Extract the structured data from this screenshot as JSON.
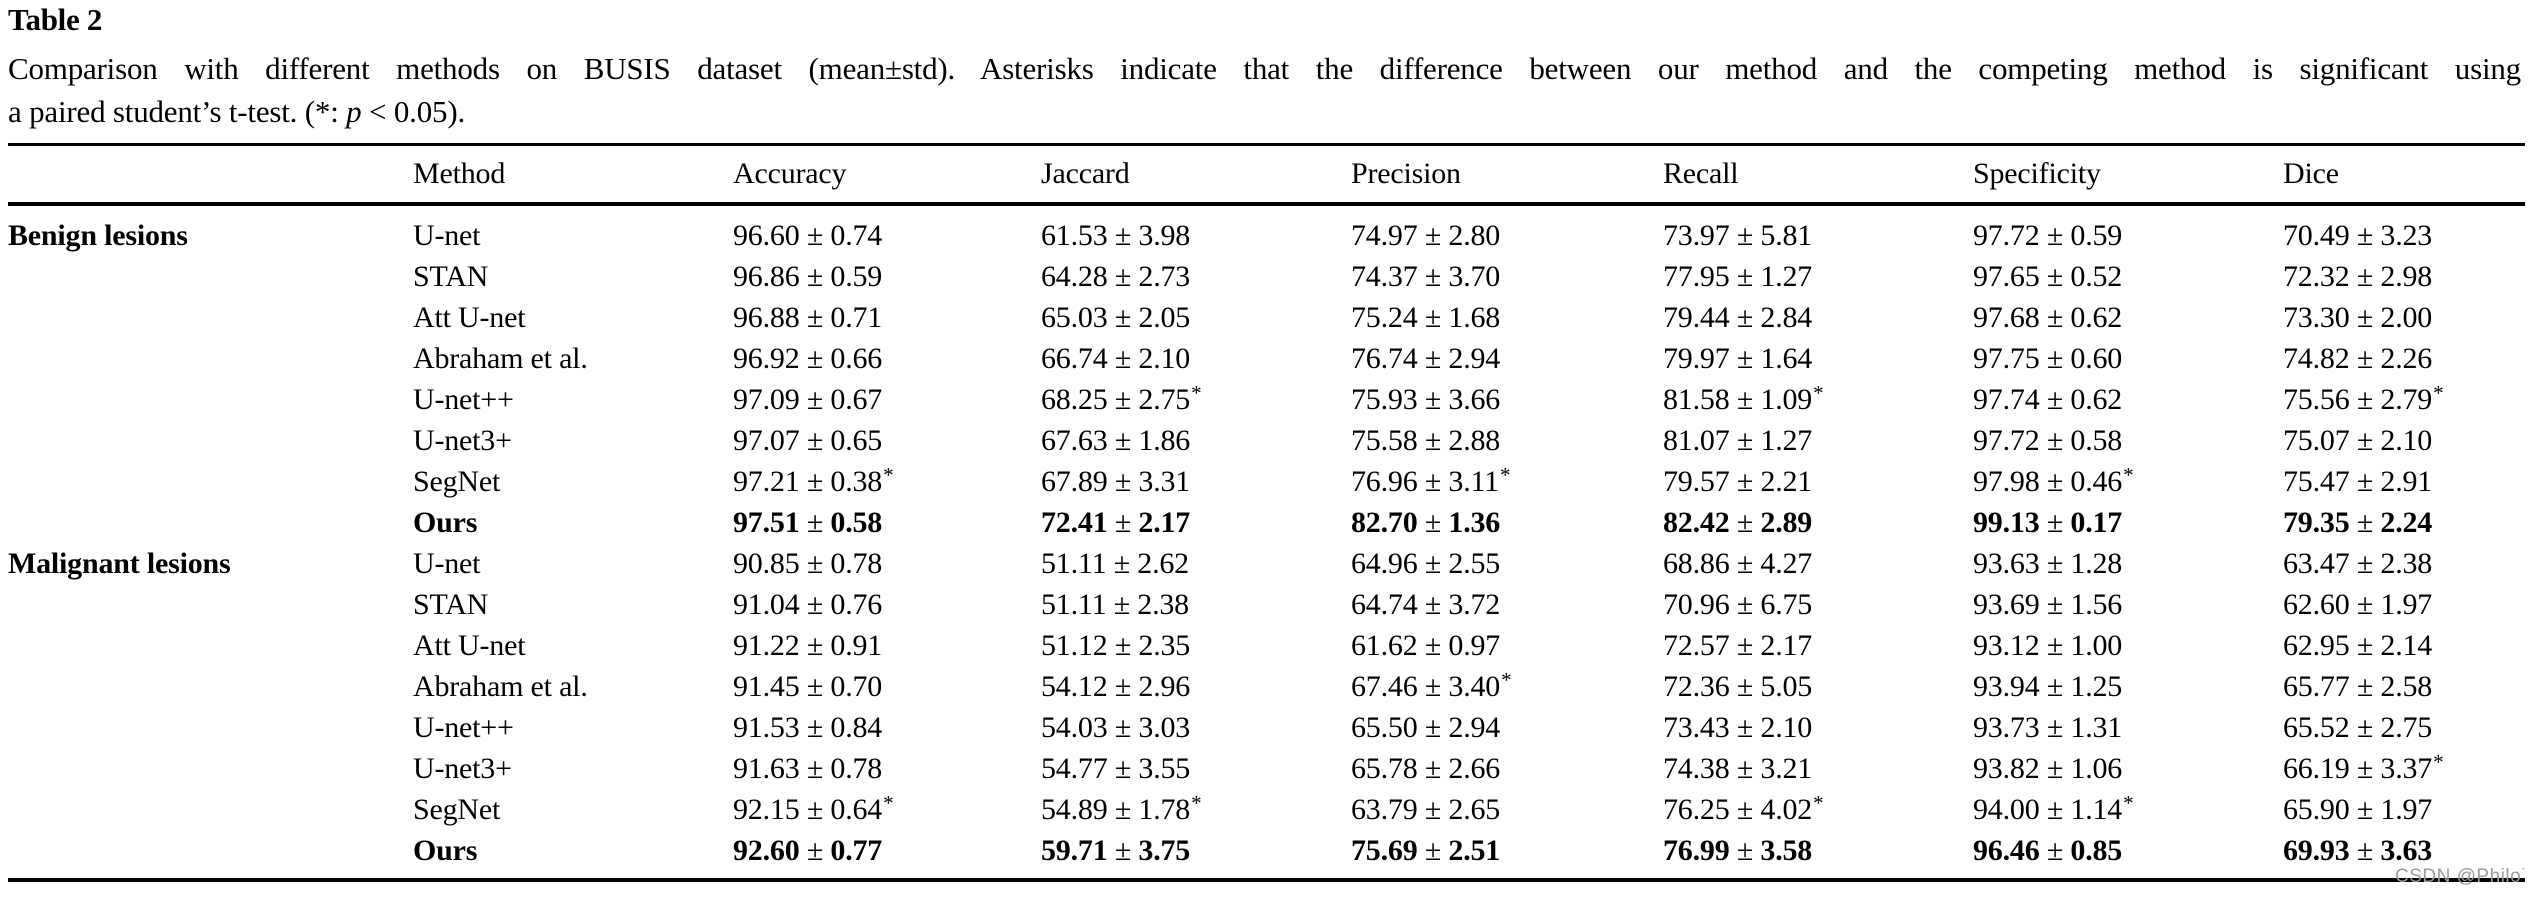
{
  "title": "Table 2",
  "caption": {
    "line1": "Comparison with different methods on BUSIS dataset (mean±std). Asterisks indicate that the difference between our method and the competing method is significant using",
    "line2_pre": "a paired student’s t-test. (*: ",
    "line2_italic": "p",
    "line2_post": " < 0.05)."
  },
  "watermark": "CSDN @Philo˙",
  "chart_data": {
    "type": "table",
    "title": "Comparison with different methods on BUSIS dataset (mean±std)",
    "columns": [
      "",
      "Method",
      "Accuracy",
      "Jaccard",
      "Precision",
      "Recall",
      "Specificity",
      "Dice"
    ],
    "sections": [
      {
        "group": "Benign lesions",
        "rows": [
          {
            "method": "U-net",
            "bold": false,
            "values": [
              "96.60 ± 0.74",
              "61.53 ± 3.98",
              "74.97 ± 2.80",
              "73.97 ± 5.81",
              "97.72 ± 0.59",
              "70.49 ± 3.23"
            ]
          },
          {
            "method": "STAN",
            "bold": false,
            "values": [
              "96.86 ± 0.59",
              "64.28 ± 2.73",
              "74.37 ± 3.70",
              "77.95 ± 1.27",
              "97.65 ± 0.52",
              "72.32 ± 2.98"
            ]
          },
          {
            "method": "Att U-net",
            "bold": false,
            "values": [
              "96.88 ± 0.71",
              "65.03 ± 2.05",
              "75.24 ± 1.68",
              "79.44 ± 2.84",
              "97.68 ± 0.62",
              "73.30 ± 2.00"
            ]
          },
          {
            "method": "Abraham et al.",
            "bold": false,
            "values": [
              "96.92 ± 0.66",
              "66.74 ± 2.10",
              "76.74 ± 2.94",
              "79.97 ± 1.64",
              "97.75 ± 0.60",
              "74.82 ± 2.26"
            ]
          },
          {
            "method": "U-net++",
            "bold": false,
            "values": [
              "97.09 ± 0.67",
              "68.25 ± 2.75*",
              "75.93 ± 3.66",
              "81.58 ± 1.09*",
              "97.74 ± 0.62",
              "75.56 ± 2.79*"
            ]
          },
          {
            "method": "U-net3+",
            "bold": false,
            "values": [
              "97.07 ± 0.65",
              "67.63 ± 1.86",
              "75.58 ± 2.88",
              "81.07 ± 1.27",
              "97.72 ± 0.58",
              "75.07 ± 2.10"
            ]
          },
          {
            "method": "SegNet",
            "bold": false,
            "values": [
              "97.21 ± 0.38*",
              "67.89 ± 3.31",
              "76.96 ± 3.11*",
              "79.57 ± 2.21",
              "97.98 ± 0.46*",
              "75.47 ± 2.91"
            ]
          },
          {
            "method": "Ours",
            "bold": true,
            "values": [
              "97.51 ± 0.58",
              "72.41 ± 2.17",
              "82.70 ± 1.36",
              "82.42 ± 2.89",
              "99.13 ± 0.17",
              "79.35 ± 2.24"
            ]
          }
        ]
      },
      {
        "group": "Malignant lesions",
        "rows": [
          {
            "method": "U-net",
            "bold": false,
            "values": [
              "90.85 ± 0.78",
              "51.11 ± 2.62",
              "64.96 ± 2.55",
              "68.86 ± 4.27",
              "93.63 ± 1.28",
              "63.47 ± 2.38"
            ]
          },
          {
            "method": "STAN",
            "bold": false,
            "values": [
              "91.04 ± 0.76",
              "51.11 ± 2.38",
              "64.74 ± 3.72",
              "70.96 ± 6.75",
              "93.69 ± 1.56",
              "62.60 ± 1.97"
            ]
          },
          {
            "method": "Att U-net",
            "bold": false,
            "values": [
              "91.22 ± 0.91",
              "51.12 ± 2.35",
              "61.62 ± 0.97",
              "72.57 ± 2.17",
              "93.12 ± 1.00",
              "62.95 ± 2.14"
            ]
          },
          {
            "method": "Abraham et al.",
            "bold": false,
            "values": [
              "91.45 ± 0.70",
              "54.12 ± 2.96",
              "67.46 ± 3.40*",
              "72.36 ± 5.05",
              "93.94 ± 1.25",
              "65.77 ± 2.58"
            ]
          },
          {
            "method": "U-net++",
            "bold": false,
            "values": [
              "91.53 ± 0.84",
              "54.03 ± 3.03",
              "65.50 ± 2.94",
              "73.43 ± 2.10",
              "93.73 ± 1.31",
              "65.52 ± 2.75"
            ]
          },
          {
            "method": "U-net3+",
            "bold": false,
            "values": [
              "91.63 ± 0.78",
              "54.77 ± 3.55",
              "65.78 ± 2.66",
              "74.38 ± 3.21",
              "93.82 ± 1.06",
              "66.19 ± 3.37*"
            ]
          },
          {
            "method": "SegNet",
            "bold": false,
            "values": [
              "92.15 ± 0.64*",
              "54.89 ± 1.78*",
              "63.79 ± 2.65",
              "76.25 ± 4.02*",
              "94.00 ± 1.14*",
              "65.90 ± 1.97"
            ]
          },
          {
            "method": "Ours",
            "bold": true,
            "values": [
              "92.60 ± 0.77",
              "59.71 ± 3.75",
              "75.69 ± 2.51",
              "76.99 ± 3.58",
              "96.46 ± 0.85",
              "69.93 ± 3.63"
            ]
          }
        ]
      }
    ]
  }
}
